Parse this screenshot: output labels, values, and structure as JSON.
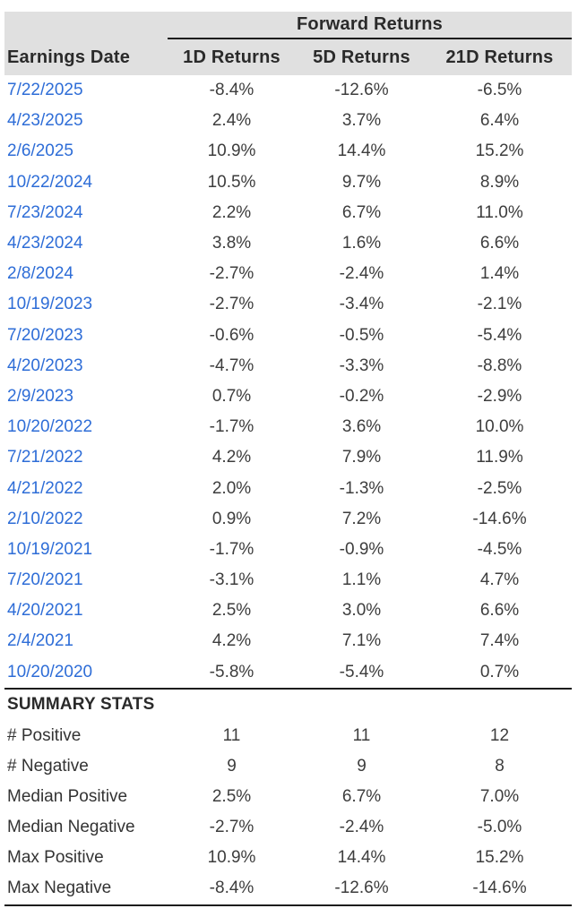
{
  "colors": {
    "date_link": "#2e6dd7",
    "header_bg": "#e0e0e0",
    "rule": "#1c1c1c",
    "value_text": "#3d3d3d"
  },
  "chart_data": {
    "type": "table",
    "title": "Forward Returns",
    "columns": [
      "Earnings Date",
      "1D Returns",
      "5D Returns",
      "21D Returns"
    ],
    "rows": [
      [
        "7/22/2025",
        "-8.4%",
        "-12.6%",
        "-6.5%"
      ],
      [
        "4/23/2025",
        "2.4%",
        "3.7%",
        "6.4%"
      ],
      [
        "2/6/2025",
        "10.9%",
        "14.4%",
        "15.2%"
      ],
      [
        "10/22/2024",
        "10.5%",
        "9.7%",
        "8.9%"
      ],
      [
        "7/23/2024",
        "2.2%",
        "6.7%",
        "11.0%"
      ],
      [
        "4/23/2024",
        "3.8%",
        "1.6%",
        "6.6%"
      ],
      [
        "2/8/2024",
        "-2.7%",
        "-2.4%",
        "1.4%"
      ],
      [
        "10/19/2023",
        "-2.7%",
        "-3.4%",
        "-2.1%"
      ],
      [
        "7/20/2023",
        "-0.6%",
        "-0.5%",
        "-5.4%"
      ],
      [
        "4/20/2023",
        "-4.7%",
        "-3.3%",
        "-8.8%"
      ],
      [
        "2/9/2023",
        "0.7%",
        "-0.2%",
        "-2.9%"
      ],
      [
        "10/20/2022",
        "-1.7%",
        "3.6%",
        "10.0%"
      ],
      [
        "7/21/2022",
        "4.2%",
        "7.9%",
        "11.9%"
      ],
      [
        "4/21/2022",
        "2.0%",
        "-1.3%",
        "-2.5%"
      ],
      [
        "2/10/2022",
        "0.9%",
        "7.2%",
        "-14.6%"
      ],
      [
        "10/19/2021",
        "-1.7%",
        "-0.9%",
        "-4.5%"
      ],
      [
        "7/20/2021",
        "-3.1%",
        "1.1%",
        "4.7%"
      ],
      [
        "4/20/2021",
        "2.5%",
        "3.0%",
        "6.6%"
      ],
      [
        "2/4/2021",
        "4.2%",
        "7.1%",
        "7.4%"
      ],
      [
        "10/20/2020",
        "-5.8%",
        "-5.4%",
        "0.7%"
      ]
    ],
    "summary_title": "SUMMARY STATS",
    "summary_rows": [
      [
        "# Positive",
        "11",
        "11",
        "12"
      ],
      [
        "# Negative",
        "9",
        "9",
        "8"
      ],
      [
        "Median Positive",
        "2.5%",
        "6.7%",
        "7.0%"
      ],
      [
        "Median Negative",
        "-2.7%",
        "-2.4%",
        "-5.0%"
      ],
      [
        "Max Positive",
        "10.9%",
        "14.4%",
        "15.2%"
      ],
      [
        "Max Negative",
        "-8.4%",
        "-12.6%",
        "-14.6%"
      ]
    ]
  }
}
